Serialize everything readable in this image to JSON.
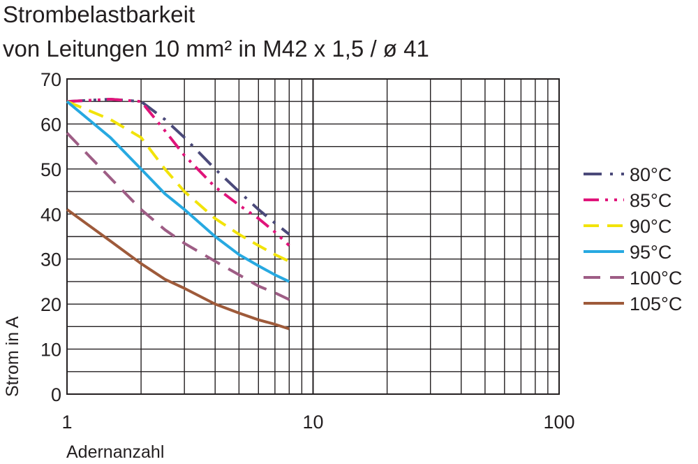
{
  "chart_data": {
    "type": "line",
    "title": "Strombelastbarkeit",
    "subtitle": "von Leitungen 10 mm² in M42 x 1,5 / ø 41",
    "xlabel": "Adernanzahl",
    "ylabel": "Strom in A",
    "xscale": "log",
    "xlim": [
      1,
      100
    ],
    "ylim": [
      0,
      70
    ],
    "xticks": [
      "1",
      "10",
      "100"
    ],
    "yticks": [
      "0",
      "10",
      "20",
      "30",
      "40",
      "50",
      "60",
      "70"
    ],
    "grid": true,
    "legend_position": "right",
    "series": [
      {
        "name": "80°C",
        "color": "#4b4a7a",
        "dash": "dashdot",
        "x": [
          1,
          1.5,
          2,
          2.5,
          3,
          4,
          5,
          6,
          7,
          8
        ],
        "y": [
          65,
          65.5,
          65,
          61,
          57,
          50,
          45,
          41,
          38,
          35.5
        ]
      },
      {
        "name": "85°C",
        "color": "#e0147a",
        "dash": "dashdotdot",
        "x": [
          1,
          1.5,
          2,
          2.5,
          3,
          4,
          5,
          6,
          7,
          8
        ],
        "y": [
          65,
          65.5,
          65,
          58.5,
          53,
          46,
          42,
          39,
          36,
          33
        ]
      },
      {
        "name": "90°C",
        "color": "#f2e30a",
        "dash": "dashed",
        "x": [
          1,
          1.5,
          2,
          2.5,
          3,
          4,
          5,
          6,
          7,
          8
        ],
        "y": [
          65,
          61,
          57,
          50,
          45,
          39,
          35.5,
          33,
          31,
          29.5
        ]
      },
      {
        "name": "95°C",
        "color": "#27a9e1",
        "dash": "solid",
        "x": [
          1,
          1.5,
          2,
          2.5,
          3,
          4,
          5,
          6,
          7,
          8
        ],
        "y": [
          65,
          57,
          50,
          44.5,
          41,
          35,
          31,
          28.5,
          26.5,
          25
        ]
      },
      {
        "name": "100°C",
        "color": "#9e5d85",
        "dash": "longdash",
        "x": [
          1,
          1.5,
          2,
          2.5,
          3,
          4,
          5,
          6,
          7,
          8
        ],
        "y": [
          58,
          48,
          41,
          36.5,
          33.5,
          29.5,
          26.5,
          24,
          22.5,
          21
        ]
      },
      {
        "name": "105°C",
        "color": "#9e5a3a",
        "dash": "solid",
        "x": [
          1,
          1.5,
          2,
          2.5,
          3,
          4,
          5,
          6,
          7,
          8
        ],
        "y": [
          41,
          34,
          29,
          25.5,
          23.5,
          20,
          18,
          16.5,
          15.5,
          14.5
        ]
      }
    ]
  }
}
